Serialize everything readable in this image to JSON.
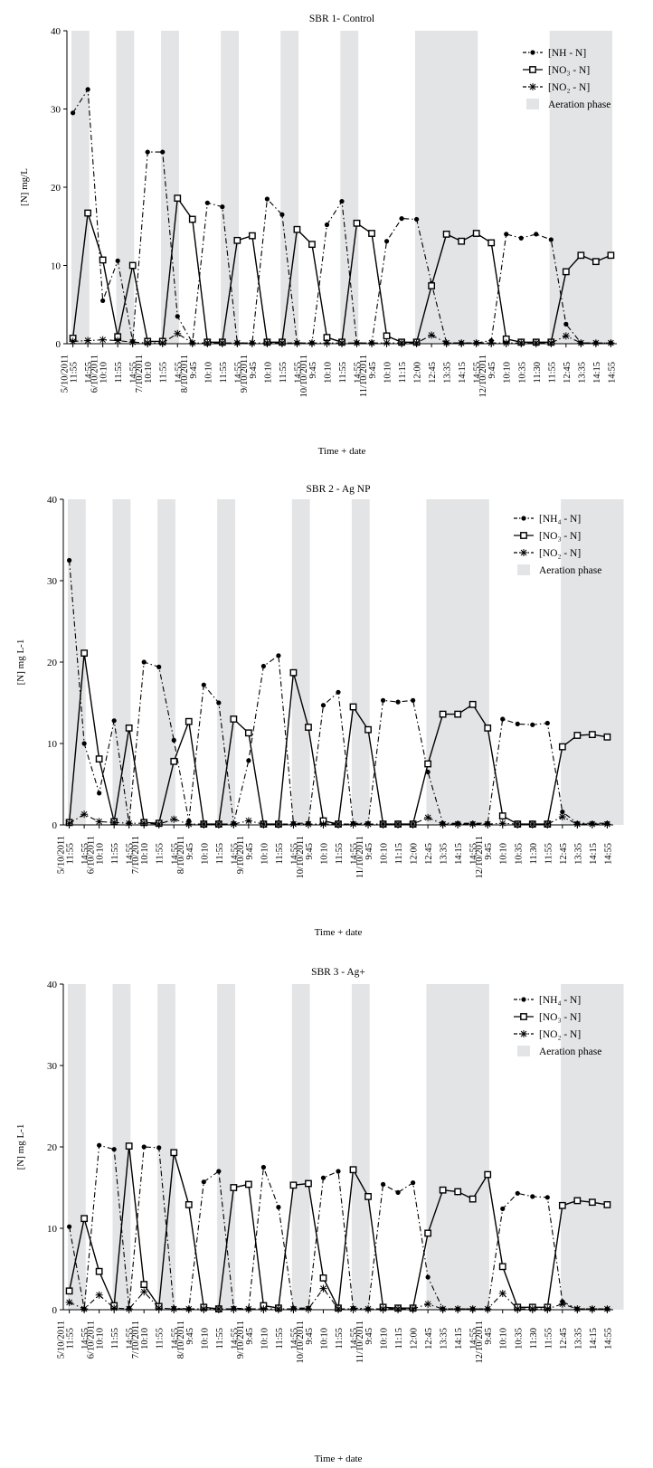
{
  "times": [
    "11:55",
    "14:55",
    "10:10",
    "11:55",
    "14:55",
    "10:10",
    "11:55",
    "14:55",
    "9:45",
    "10:10",
    "11:55",
    "14:55",
    "9:45",
    "10:10",
    "11:55",
    "14:55",
    "9:45",
    "10:10",
    "11:55",
    "14:55",
    "9:45",
    "10:10",
    "11:15",
    "12:00",
    "12:45",
    "13:35",
    "14:15",
    "14:55",
    "9:45",
    "10:10",
    "10:35",
    "11:30",
    "11:55",
    "12:45",
    "13:35",
    "14:15",
    "14:55"
  ],
  "date_labels": [
    {
      "index": 0,
      "text": "5/10/2011"
    },
    {
      "index": 2,
      "text": "6/10/2011"
    },
    {
      "index": 5,
      "text": "7/10/2011"
    },
    {
      "index": 8,
      "text": "8/10/2011"
    },
    {
      "index": 12,
      "text": "9/10/2011"
    },
    {
      "index": 16,
      "text": "10/10/2011"
    },
    {
      "index": 20,
      "text": "11/10/2011"
    },
    {
      "index": 28,
      "text": "12/10/2011"
    }
  ],
  "colors": {
    "aeration": "#e3e4e6",
    "line": "#000000"
  },
  "chart_data": [
    {
      "type": "line",
      "title": "SBR 1- Control",
      "xlabel": "Time + date",
      "ylabel": "[N] mg/L",
      "ylim": [
        0,
        40
      ],
      "yticks": [
        0,
        10,
        20,
        30,
        40
      ],
      "legend": [
        "[NH - N]",
        "[NO₃ - N]",
        "[NO₂ - N]",
        "Aeration phase"
      ],
      "legend_position": "top-right",
      "aeration_phases": [
        [
          0,
          1
        ],
        [
          3,
          4
        ],
        [
          6,
          7
        ],
        [
          10,
          11
        ],
        [
          14,
          15
        ],
        [
          18,
          19
        ],
        [
          23,
          27
        ],
        [
          32,
          36
        ]
      ],
      "series": [
        {
          "marker": "dot",
          "values": [
            29.5,
            32.5,
            5.5,
            10.6,
            0.3,
            24.5,
            24.5,
            3.5,
            0.1,
            18.0,
            17.5,
            0.1,
            0.1,
            18.5,
            16.5,
            0.1,
            0.1,
            15.2,
            18.2,
            0.1,
            0.1,
            13.1,
            16.0,
            15.9,
            7.7,
            0.1,
            0.1,
            0.1,
            0.4,
            14.0,
            13.5,
            14.0,
            13.3,
            2.5,
            0.1,
            0.1,
            0.1
          ]
        },
        {
          "marker": "square",
          "values": [
            0.7,
            16.7,
            10.7,
            0.9,
            10.0,
            0.3,
            0.3,
            18.6,
            15.9,
            0.2,
            0.2,
            13.2,
            13.8,
            0.2,
            0.2,
            14.6,
            12.7,
            0.8,
            0.2,
            15.4,
            14.1,
            1.0,
            0.2,
            0.2,
            7.4,
            14.0,
            13.1,
            14.1,
            12.9,
            0.6,
            0.2,
            0.2,
            0.2,
            9.2,
            11.3,
            10.5,
            11.3
          ]
        },
        {
          "marker": "star",
          "values": [
            0.3,
            0.4,
            0.5,
            0.4,
            0.2,
            0.1,
            0.1,
            1.3,
            0.1,
            0.1,
            0.1,
            0.1,
            0.1,
            0.1,
            0.1,
            0.1,
            0.1,
            0.1,
            0.1,
            0.1,
            0.1,
            0.1,
            0.1,
            0.1,
            1.1,
            0.1,
            0.1,
            0.1,
            0.1,
            0.1,
            0.1,
            0.1,
            0.1,
            1.0,
            0.1,
            0.1,
            0.1
          ]
        }
      ]
    },
    {
      "type": "line",
      "title": "SBR 2 - Ag NP",
      "xlabel": "Time + date",
      "ylabel": "[N] mg L-1",
      "ylim": [
        0,
        40
      ],
      "yticks": [
        0,
        10,
        20,
        30,
        40
      ],
      "legend": [
        "[NH₄ - N]",
        "[NO₃ - N]",
        "[NO₂ - N]",
        "Aeration phase"
      ],
      "legend_position": "top-right",
      "aeration_phases": [
        [
          0,
          1
        ],
        [
          3,
          4
        ],
        [
          6,
          7
        ],
        [
          10,
          11
        ],
        [
          15,
          16
        ],
        [
          19,
          20
        ],
        [
          24,
          28
        ],
        [
          33,
          37
        ]
      ],
      "series": [
        {
          "marker": "dot",
          "values": [
            32.5,
            10.0,
            3.9,
            12.8,
            0.2,
            20.0,
            19.4,
            10.4,
            0.5,
            17.2,
            15.0,
            0.2,
            7.9,
            19.5,
            20.8,
            0.2,
            0.2,
            14.7,
            16.3,
            0.2,
            0.2,
            15.3,
            15.1,
            15.3,
            6.5,
            0.2,
            0.2,
            0.2,
            0.2,
            13.0,
            12.4,
            12.3,
            12.5,
            1.6,
            0.2,
            0.2,
            0.2
          ]
        },
        {
          "marker": "square",
          "values": [
            0.3,
            21.1,
            8.1,
            0.4,
            11.9,
            0.3,
            0.2,
            7.8,
            12.7,
            0.1,
            0.1,
            13.0,
            11.3,
            0.1,
            0.1,
            18.7,
            12.0,
            0.5,
            0.1,
            14.5,
            11.7,
            0.1,
            0.1,
            0.1,
            7.5,
            13.6,
            13.6,
            14.8,
            11.9,
            1.1,
            0.1,
            0.1,
            0.1,
            9.6,
            11.0,
            11.1,
            10.8
          ]
        },
        {
          "marker": "star",
          "values": [
            0.2,
            1.3,
            0.4,
            0.3,
            0.2,
            0.2,
            0.1,
            0.7,
            0.1,
            0.1,
            0.1,
            0.1,
            0.5,
            0.1,
            0.1,
            0.1,
            0.1,
            0.1,
            0.1,
            0.1,
            0.1,
            0.1,
            0.1,
            0.1,
            0.9,
            0.1,
            0.1,
            0.1,
            0.1,
            0.2,
            0.1,
            0.1,
            0.1,
            1.0,
            0.1,
            0.1,
            0.1
          ]
        }
      ]
    },
    {
      "type": "line",
      "title": "SBR 3 - Ag+",
      "xlabel": "Time + date",
      "ylabel": "[N] mg L-1",
      "ylim": [
        0,
        40
      ],
      "yticks": [
        0,
        10,
        20,
        30,
        40
      ],
      "legend": [
        "[NH₄ - N]",
        "[NO₃ - N]",
        "[NO₂ - N]",
        "Aeration phase"
      ],
      "legend_position": "top-right",
      "aeration_phases": [
        [
          0,
          1
        ],
        [
          3,
          4
        ],
        [
          6,
          7
        ],
        [
          10,
          11
        ],
        [
          15,
          16
        ],
        [
          19,
          20
        ],
        [
          24,
          28
        ],
        [
          33,
          37
        ]
      ],
      "series": [
        {
          "marker": "dot",
          "values": [
            10.2,
            0.1,
            20.2,
            19.7,
            0.2,
            20.0,
            19.9,
            0.2,
            0.1,
            15.7,
            17.0,
            0.2,
            0.1,
            17.5,
            12.6,
            0.2,
            0.2,
            16.2,
            17.0,
            0.2,
            0.1,
            15.4,
            14.4,
            15.6,
            4.0,
            0.1,
            0.1,
            0.1,
            0.1,
            12.4,
            14.3,
            13.9,
            13.8,
            1.0,
            0.1,
            0.1,
            0.1
          ]
        },
        {
          "marker": "square",
          "values": [
            2.3,
            11.2,
            4.7,
            0.5,
            20.1,
            3.1,
            0.4,
            19.3,
            12.9,
            0.3,
            0.1,
            15.0,
            15.4,
            0.5,
            0.2,
            15.3,
            15.5,
            3.9,
            0.2,
            17.2,
            13.9,
            0.3,
            0.2,
            0.2,
            9.4,
            14.7,
            14.5,
            13.6,
            16.6,
            5.3,
            0.3,
            0.3,
            0.3,
            12.8,
            13.4,
            13.2,
            12.9
          ]
        },
        {
          "marker": "star",
          "values": [
            0.9,
            0.1,
            1.8,
            0.2,
            0.1,
            2.2,
            0.2,
            0.1,
            0.1,
            0.1,
            0.1,
            0.1,
            0.1,
            0.1,
            0.1,
            0.1,
            0.1,
            2.6,
            0.1,
            0.1,
            0.1,
            0.1,
            0.1,
            0.1,
            0.7,
            0.1,
            0.1,
            0.1,
            0.1,
            2.0,
            0.1,
            0.1,
            0.1,
            0.7,
            0.1,
            0.1,
            0.1
          ]
        }
      ]
    }
  ]
}
